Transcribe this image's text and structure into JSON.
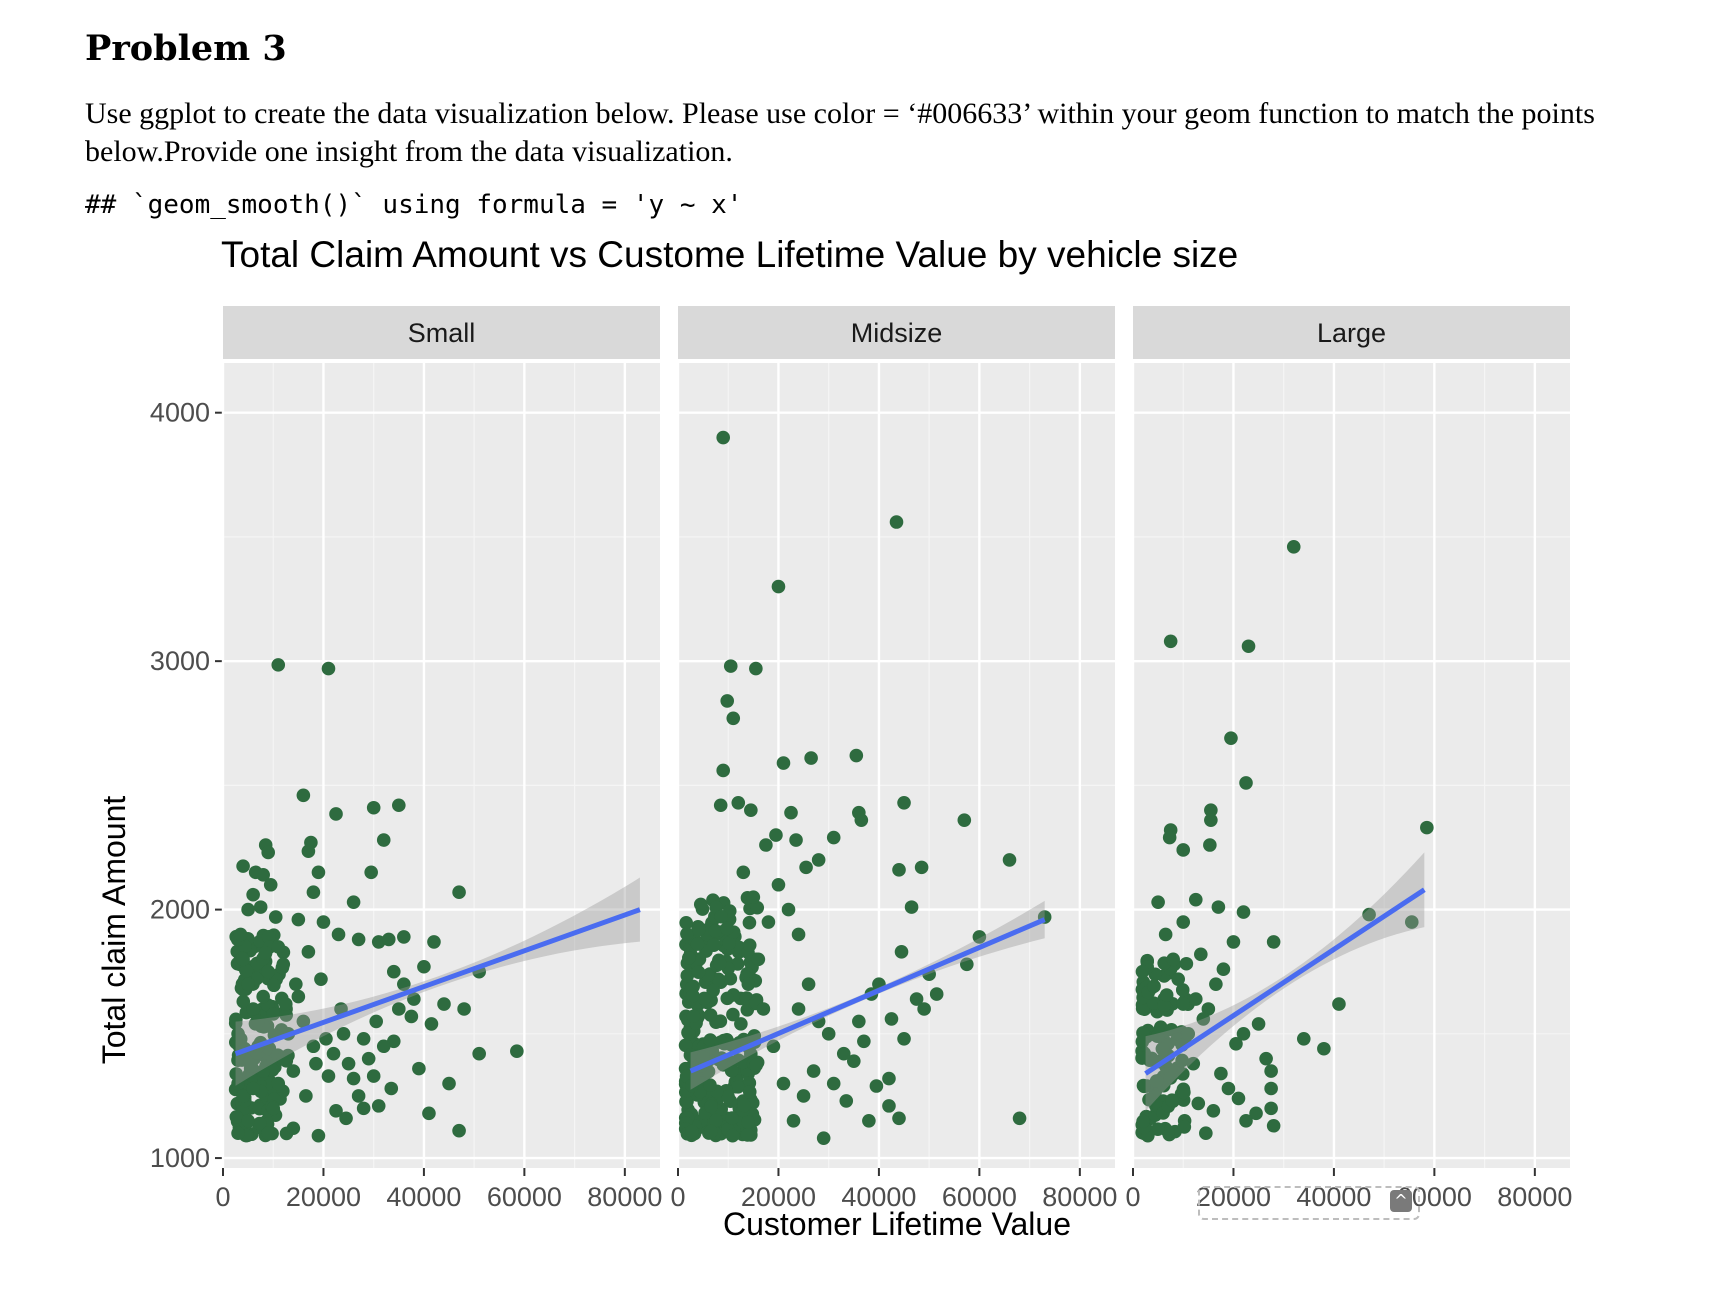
{
  "doc": {
    "problem_title": "Problem 3",
    "problem_text": "Use ggplot to create the data visualization below. Please use color = ‘#006633’ within your geom function to match the points below.Provide one insight from the data visualization.",
    "code_line": "## `geom_smooth()` using formula = 'y ~ x'"
  },
  "ui": {
    "scroll_button_icon": "chevron-up-icon",
    "scroll_button_glyph": "^"
  },
  "chart_data": {
    "type": "scatter",
    "title": "Total Claim Amount vs Custome Lifetime Value by vehicle size",
    "xlabel": "Customer Lifetime Value",
    "ylabel": "Total claim Amount",
    "xlim": [
      0,
      87000
    ],
    "ylim": [
      960,
      4200
    ],
    "xticks": [
      0,
      20000,
      40000,
      60000,
      80000
    ],
    "yticks": [
      1000,
      2000,
      3000,
      4000
    ],
    "grid": true,
    "point_color": "#2e6b3f",
    "line_color": "#4a6cf0",
    "panel_bg": "#ebebeb",
    "strip_bg": "#d9d9d9",
    "facets": [
      {
        "name": "Small",
        "smooth": {
          "x0": 2500,
          "y0": 1420,
          "x1": 83000,
          "y1": 2000,
          "se": 60
        },
        "points": [
          [
            11000,
            2985
          ],
          [
            21000,
            2970
          ],
          [
            16000,
            2460
          ],
          [
            22500,
            2385
          ],
          [
            30000,
            2410
          ],
          [
            35000,
            2420
          ],
          [
            32000,
            2280
          ],
          [
            17500,
            2270
          ],
          [
            17000,
            2235
          ],
          [
            8500,
            2260
          ],
          [
            9000,
            2230
          ],
          [
            4000,
            2175
          ],
          [
            6500,
            2150
          ],
          [
            8000,
            2140
          ],
          [
            9500,
            2100
          ],
          [
            6000,
            2060
          ],
          [
            18000,
            2070
          ],
          [
            19000,
            2150
          ],
          [
            29500,
            2150
          ],
          [
            26000,
            2030
          ],
          [
            47000,
            2070
          ],
          [
            5000,
            2000
          ],
          [
            7500,
            2010
          ],
          [
            10500,
            1970
          ],
          [
            15000,
            1960
          ],
          [
            20000,
            1950
          ],
          [
            23000,
            1900
          ],
          [
            27000,
            1880
          ],
          [
            31000,
            1870
          ],
          [
            33000,
            1880
          ],
          [
            36000,
            1890
          ],
          [
            42000,
            1870
          ],
          [
            40000,
            1770
          ],
          [
            34000,
            1750
          ],
          [
            36000,
            1700
          ],
          [
            44000,
            1620
          ],
          [
            51000,
            1750
          ],
          [
            48000,
            1600
          ],
          [
            38000,
            1640
          ],
          [
            35000,
            1600
          ],
          [
            30500,
            1550
          ],
          [
            37500,
            1570
          ],
          [
            41500,
            1540
          ],
          [
            28000,
            1480
          ],
          [
            34000,
            1470
          ],
          [
            39000,
            1360
          ],
          [
            45000,
            1300
          ],
          [
            51000,
            1420
          ],
          [
            58500,
            1430
          ],
          [
            47000,
            1110
          ],
          [
            41000,
            1180
          ],
          [
            33500,
            1280
          ],
          [
            31000,
            1210
          ],
          [
            27000,
            1250
          ],
          [
            24500,
            1160
          ],
          [
            22500,
            1190
          ],
          [
            19000,
            1090
          ],
          [
            14000,
            1120
          ],
          [
            29000,
            1400
          ],
          [
            25000,
            1380
          ],
          [
            21000,
            1330
          ],
          [
            18000,
            1450
          ],
          [
            16000,
            1550
          ],
          [
            15000,
            1650
          ],
          [
            19500,
            1720
          ],
          [
            17000,
            1830
          ],
          [
            14500,
            1700
          ],
          [
            12000,
            1780
          ],
          [
            11000,
            1850
          ],
          [
            13000,
            1500
          ],
          [
            12000,
            1400
          ],
          [
            11000,
            1300
          ],
          [
            10000,
            1200
          ],
          [
            9000,
            1100
          ],
          [
            8000,
            1350
          ],
          [
            7000,
            1450
          ],
          [
            6000,
            1600
          ],
          [
            5000,
            1700
          ],
          [
            4000,
            1800
          ],
          [
            3500,
            1900
          ],
          [
            3000,
            1500
          ],
          [
            3000,
            1300
          ],
          [
            3000,
            1100
          ],
          [
            4000,
            1250
          ],
          [
            5000,
            1150
          ],
          [
            6000,
            1280
          ],
          [
            7000,
            1550
          ],
          [
            8000,
            1650
          ],
          [
            9000,
            1750
          ],
          [
            10000,
            1580
          ],
          [
            12500,
            1620
          ],
          [
            14000,
            1350
          ],
          [
            16500,
            1250
          ],
          [
            18500,
            1380
          ],
          [
            20500,
            1480
          ],
          [
            22000,
            1420
          ],
          [
            24000,
            1500
          ],
          [
            26000,
            1320
          ],
          [
            28000,
            1200
          ],
          [
            30000,
            1330
          ],
          [
            32000,
            1450
          ],
          [
            23500,
            1600
          ]
        ],
        "dense": {
          "x0": 2500,
          "x1": 13000,
          "y0": 1090,
          "y1": 1900,
          "n": 160
        }
      },
      {
        "name": "Midsize",
        "smooth": {
          "x0": 2500,
          "y0": 1350,
          "x1": 73000,
          "y1": 1960,
          "se": 35
        },
        "points": [
          [
            9000,
            3900
          ],
          [
            43500,
            3560
          ],
          [
            20000,
            3300
          ],
          [
            10500,
            2980
          ],
          [
            15500,
            2970
          ],
          [
            9800,
            2840
          ],
          [
            11000,
            2770
          ],
          [
            9000,
            2560
          ],
          [
            21000,
            2590
          ],
          [
            26500,
            2610
          ],
          [
            35500,
            2620
          ],
          [
            45000,
            2430
          ],
          [
            36000,
            2390
          ],
          [
            36500,
            2360
          ],
          [
            57000,
            2360
          ],
          [
            66000,
            2200
          ],
          [
            44000,
            2160
          ],
          [
            48500,
            2170
          ],
          [
            31000,
            2290
          ],
          [
            28000,
            2200
          ],
          [
            25500,
            2170
          ],
          [
            23500,
            2280
          ],
          [
            22500,
            2390
          ],
          [
            19500,
            2300
          ],
          [
            17500,
            2260
          ],
          [
            14500,
            2400
          ],
          [
            12000,
            2430
          ],
          [
            8500,
            2420
          ],
          [
            46500,
            2010
          ],
          [
            60000,
            1890
          ],
          [
            73000,
            1970
          ],
          [
            44500,
            1830
          ],
          [
            50000,
            1740
          ],
          [
            57500,
            1780
          ],
          [
            51500,
            1660
          ],
          [
            49000,
            1600
          ],
          [
            47500,
            1640
          ],
          [
            45000,
            1480
          ],
          [
            42500,
            1560
          ],
          [
            40000,
            1700
          ],
          [
            38500,
            1660
          ],
          [
            37000,
            1470
          ],
          [
            35000,
            1390
          ],
          [
            33500,
            1230
          ],
          [
            42000,
            1210
          ],
          [
            44000,
            1160
          ],
          [
            42000,
            1320
          ],
          [
            39500,
            1290
          ],
          [
            68000,
            1160
          ],
          [
            30000,
            1500
          ],
          [
            28000,
            1550
          ],
          [
            26000,
            1700
          ],
          [
            24000,
            1900
          ],
          [
            22000,
            2000
          ],
          [
            20000,
            2100
          ],
          [
            18000,
            1950
          ],
          [
            16000,
            1800
          ],
          [
            14000,
            1700
          ],
          [
            15000,
            2050
          ],
          [
            13000,
            2150
          ],
          [
            27000,
            1350
          ],
          [
            25000,
            1250
          ],
          [
            23000,
            1150
          ],
          [
            21000,
            1300
          ],
          [
            19000,
            1450
          ],
          [
            17000,
            1600
          ],
          [
            31000,
            1300
          ],
          [
            33000,
            1420
          ],
          [
            36000,
            1550
          ],
          [
            38000,
            1150
          ],
          [
            29000,
            1080
          ],
          [
            24000,
            1600
          ]
        ],
        "dense": {
          "x0": 1500,
          "x1": 16000,
          "y0": 1090,
          "y1": 2050,
          "n": 260
        }
      },
      {
        "name": "Large",
        "smooth": {
          "x0": 2500,
          "y0": 1340,
          "x1": 58000,
          "y1": 2080,
          "se": 70
        },
        "points": [
          [
            32000,
            3460
          ],
          [
            7500,
            3080
          ],
          [
            23000,
            3060
          ],
          [
            19500,
            2690
          ],
          [
            22500,
            2510
          ],
          [
            58500,
            2330
          ],
          [
            7500,
            2320
          ],
          [
            7300,
            2290
          ],
          [
            10000,
            2240
          ],
          [
            15500,
            2400
          ],
          [
            15500,
            2360
          ],
          [
            15300,
            2260
          ],
          [
            5000,
            2030
          ],
          [
            12500,
            2040
          ],
          [
            17000,
            2010
          ],
          [
            22000,
            1990
          ],
          [
            28000,
            1870
          ],
          [
            47000,
            1980
          ],
          [
            55500,
            1950
          ],
          [
            41000,
            1620
          ],
          [
            34000,
            1480
          ],
          [
            38000,
            1440
          ],
          [
            20000,
            1870
          ],
          [
            18000,
            1760
          ],
          [
            16500,
            1700
          ],
          [
            25000,
            1540
          ],
          [
            22000,
            1500
          ],
          [
            20500,
            1460
          ],
          [
            26500,
            1400
          ],
          [
            27500,
            1350
          ],
          [
            27500,
            1280
          ],
          [
            27500,
            1200
          ],
          [
            28000,
            1130
          ],
          [
            24500,
            1180
          ],
          [
            22500,
            1150
          ],
          [
            21000,
            1240
          ],
          [
            19000,
            1280
          ],
          [
            17500,
            1340
          ],
          [
            16000,
            1190
          ],
          [
            14500,
            1100
          ],
          [
            13000,
            1220
          ],
          [
            12000,
            1380
          ],
          [
            11000,
            1500
          ],
          [
            10000,
            1620
          ],
          [
            9000,
            1720
          ],
          [
            8000,
            1800
          ],
          [
            6500,
            1900
          ],
          [
            10000,
            1950
          ],
          [
            13500,
            1820
          ],
          [
            15000,
            1600
          ],
          [
            12500,
            1640
          ],
          [
            14000,
            1560
          ]
        ],
        "dense": {
          "x0": 1800,
          "x1": 11000,
          "y0": 1090,
          "y1": 1820,
          "n": 110
        }
      }
    ]
  }
}
